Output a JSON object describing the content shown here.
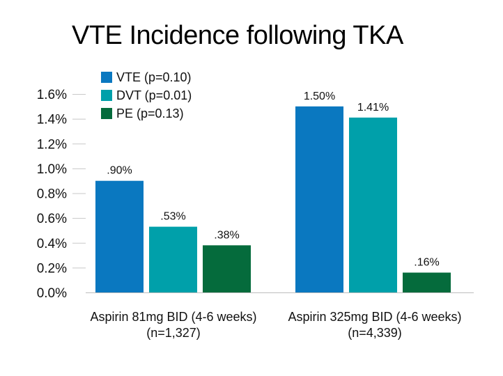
{
  "chart_data": {
    "type": "bar",
    "title": "VTE Incidence following TKA",
    "categories": [
      "Aspirin 81mg BID (4-6 weeks)",
      "Aspirin 325mg BID (4-6 weeks)"
    ],
    "category_sublabels": [
      "(n=1,327)",
      "(n=4,339)"
    ],
    "series": [
      {
        "name": "VTE (p=0.10)",
        "values": [
          0.9,
          1.5
        ],
        "labels": [
          ".90%",
          "1.50%"
        ],
        "color": "#0a78c0"
      },
      {
        "name": "DVT (p=0.01)",
        "values": [
          0.53,
          1.41
        ],
        "labels": [
          ".53%",
          "1.41%"
        ],
        "color": "#00a0aa"
      },
      {
        "name": "PE (p=0.13)",
        "values": [
          0.38,
          0.16
        ],
        "labels": [
          ".38%",
          ".16%"
        ],
        "color": "#056b3c"
      }
    ],
    "ylim": [
      0,
      1.6
    ],
    "yticks": [
      "0.0%",
      "0.2%",
      "0.4%",
      "0.6%",
      "0.8%",
      "1.0%",
      "1.2%",
      "1.4%",
      "1.6%"
    ],
    "xlabel": "",
    "ylabel": "",
    "legend_position": "top-left",
    "grid": false
  }
}
